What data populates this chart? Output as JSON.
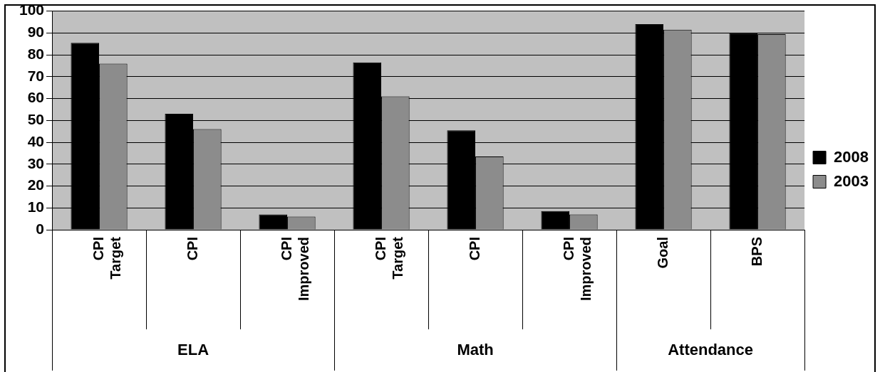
{
  "chart_data": {
    "type": "bar",
    "categories": [
      [
        "CPI",
        "Target"
      ],
      [
        "CPI"
      ],
      [
        "CPI",
        "Improved"
      ],
      [
        "CPI",
        "Target"
      ],
      [
        "CPI"
      ],
      [
        "CPI",
        "Improved"
      ],
      [
        "Goal"
      ],
      [
        "BPS"
      ]
    ],
    "series": [
      {
        "name": "2008",
        "color": "#000000",
        "values": [
          85.5,
          53,
          7,
          76.5,
          45.5,
          8.5,
          94,
          90
        ]
      },
      {
        "name": "2003",
        "color": "#8c8c8c",
        "values": [
          76,
          46,
          6,
          61,
          33.5,
          7,
          91.5,
          89.5
        ]
      }
    ],
    "annotations": [
      "ELA",
      "Math",
      "Attendance"
    ],
    "ylim": [
      0,
      100
    ],
    "yticks": [
      0,
      10,
      20,
      30,
      40,
      50,
      60,
      70,
      80,
      90,
      100
    ],
    "grid": "y",
    "legend": "right"
  }
}
